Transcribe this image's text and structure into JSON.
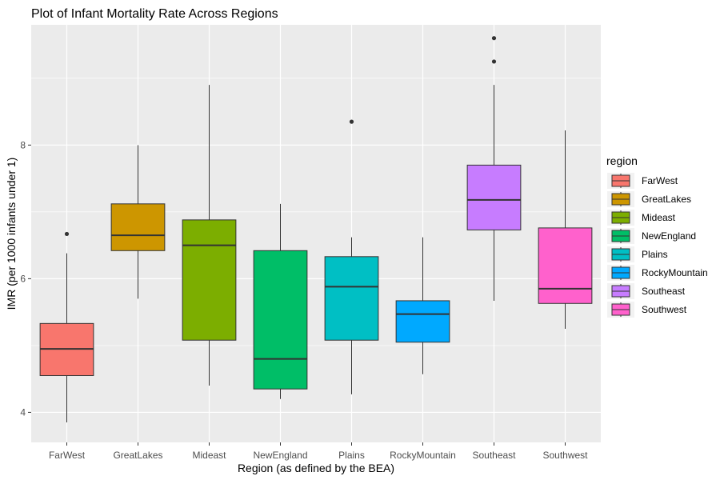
{
  "chart_data": {
    "type": "boxplot",
    "title": "Plot of Infant Mortality Rate Across Regions",
    "xlabel": "Region (as defined by the BEA)",
    "ylabel": "IMR (per 1000 infants under 1)",
    "ylim": [
      3.55,
      9.8
    ],
    "yticks": [
      4,
      6,
      8
    ],
    "grid": true,
    "legend": {
      "title": "region",
      "position": "right"
    },
    "categories": [
      "FarWest",
      "GreatLakes",
      "Mideast",
      "NewEngland",
      "Plains",
      "RockyMountain",
      "Southeast",
      "Southwest"
    ],
    "boxes": [
      {
        "name": "FarWest",
        "color": "#F8766D",
        "min": 3.85,
        "q1": 4.55,
        "median": 4.95,
        "q3": 5.33,
        "max": 6.38,
        "outliers": [
          6.67
        ]
      },
      {
        "name": "GreatLakes",
        "color": "#CD9600",
        "min": 5.7,
        "q1": 6.42,
        "median": 6.65,
        "q3": 7.12,
        "max": 8.0,
        "outliers": []
      },
      {
        "name": "Mideast",
        "color": "#7CAE00",
        "min": 4.4,
        "q1": 5.08,
        "median": 6.5,
        "q3": 6.88,
        "max": 8.9,
        "outliers": []
      },
      {
        "name": "NewEngland",
        "color": "#00BE67",
        "min": 4.2,
        "q1": 4.35,
        "median": 4.8,
        "q3": 6.42,
        "max": 7.12,
        "outliers": []
      },
      {
        "name": "Plains",
        "color": "#00BFC4",
        "min": 4.27,
        "q1": 5.08,
        "median": 5.88,
        "q3": 6.33,
        "max": 6.62,
        "outliers": [
          8.35
        ]
      },
      {
        "name": "RockyMountain",
        "color": "#00A9FF",
        "min": 4.57,
        "q1": 5.05,
        "median": 5.47,
        "q3": 5.67,
        "max": 6.62,
        "outliers": []
      },
      {
        "name": "Southeast",
        "color": "#C77CFF",
        "min": 5.67,
        "q1": 6.73,
        "median": 7.18,
        "q3": 7.7,
        "max": 8.9,
        "outliers": [
          9.25,
          9.6
        ]
      },
      {
        "name": "Southwest",
        "color": "#FF61CC",
        "min": 5.25,
        "q1": 5.63,
        "median": 5.85,
        "q3": 6.76,
        "max": 8.22,
        "outliers": []
      }
    ]
  }
}
